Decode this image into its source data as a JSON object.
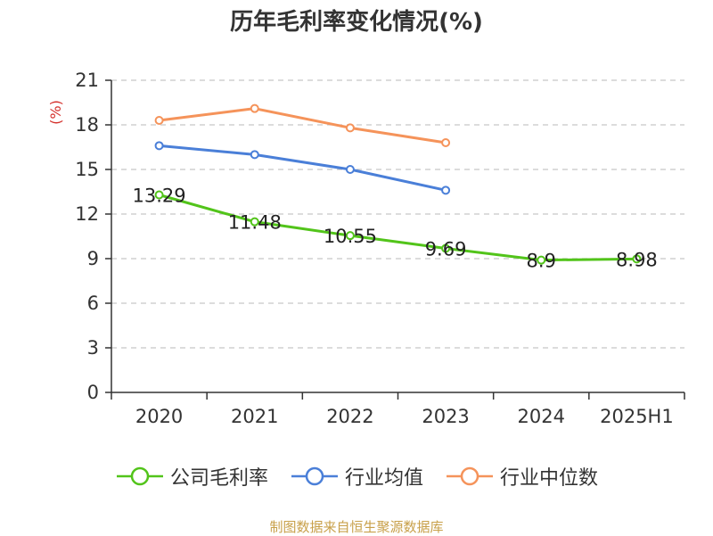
{
  "chart_data": {
    "type": "line",
    "title": "历年毛利率变化情况(%)",
    "ylabel": "(%)",
    "xlabel": "",
    "categories": [
      "2020",
      "2021",
      "2022",
      "2023",
      "2024",
      "2025H1"
    ],
    "ylim": [
      0,
      21
    ],
    "yticks": [
      0,
      3,
      6,
      9,
      12,
      15,
      18,
      21
    ],
    "grid": true,
    "legend_position": "bottom",
    "series": [
      {
        "name": "公司毛利率",
        "color": "#52c41a",
        "values": [
          13.29,
          11.48,
          10.55,
          9.69,
          8.9,
          8.98
        ],
        "labels": [
          "13.29",
          "11.48",
          "10.55",
          "9.69",
          "8.9",
          "8.98"
        ]
      },
      {
        "name": "行业均值",
        "color": "#4a7fd8",
        "values": [
          16.6,
          16.0,
          15.0,
          13.6,
          null,
          null
        ]
      },
      {
        "name": "行业中位数",
        "color": "#f5935a",
        "values": [
          18.3,
          19.1,
          17.8,
          16.8,
          null,
          null
        ]
      }
    ]
  },
  "footer": {
    "source": "制图数据来自恒生聚源数据库"
  }
}
